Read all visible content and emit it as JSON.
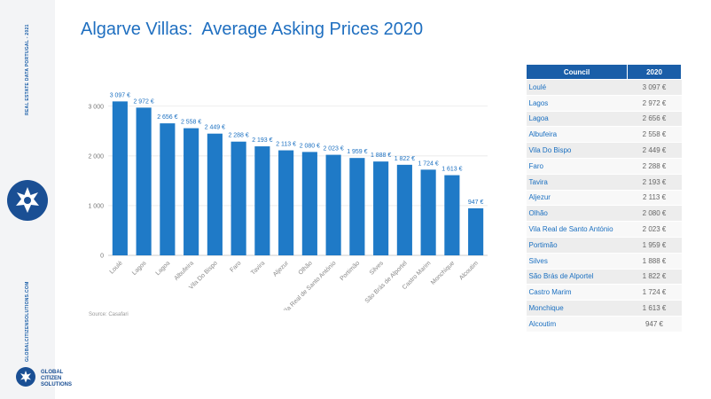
{
  "sidebar": {
    "vertical_text_top": "REAL ESTATE DATA PORTUGAL - 2021",
    "vertical_text_bottom": "GLOBALCITIZENSOLUTIONS.COM",
    "logo_lines": [
      "GLOBAL",
      "CITIZEN",
      "SOLUTIONS"
    ]
  },
  "title": "Algarve Villas:  Average Asking Prices 2020",
  "source": "Source: Casafari",
  "colors": {
    "bar": "#1f7ac7",
    "header": "#1a5ea8",
    "text_blue": "#1a6fc0"
  },
  "chart_data": {
    "type": "bar",
    "categories": [
      "Loulé",
      "Lagos",
      "Lagoa",
      "Albufeira",
      "Vila Do Bispo",
      "Faro",
      "Tavira",
      "Aljezur",
      "Olhão",
      "Vila Real de Santo António",
      "Portimão",
      "Silves",
      "São Brás de Alportel",
      "Castro Marim",
      "Monchique",
      "Alcoutim"
    ],
    "values": [
      3097,
      2972,
      2656,
      2558,
      2449,
      2288,
      2193,
      2113,
      2080,
      2023,
      1959,
      1888,
      1822,
      1724,
      1613,
      947
    ],
    "value_labels": [
      "3 097 €",
      "2 972 €",
      "2 656 €",
      "2 558 €",
      "2 449 €",
      "2 288 €",
      "2 193 €",
      "2 113 €",
      "2 080 €",
      "2 023 €",
      "1 959 €",
      "1 888 €",
      "1 822 €",
      "1 724 €",
      "1 613 €",
      "947 €"
    ],
    "ylim": [
      0,
      3300
    ],
    "yticks": [
      0,
      1000,
      2000,
      3000
    ],
    "ytick_labels": [
      "0",
      "1 000",
      "2 000",
      "3 000"
    ],
    "grid": true
  },
  "table": {
    "headers": [
      "Council",
      "2020"
    ],
    "rows": [
      [
        "Loulé",
        "3 097 €"
      ],
      [
        "Lagos",
        "2 972 €"
      ],
      [
        "Lagoa",
        "2 656 €"
      ],
      [
        "Albufeira",
        "2 558 €"
      ],
      [
        "Vila Do Bispo",
        "2 449 €"
      ],
      [
        "Faro",
        "2 288 €"
      ],
      [
        "Tavira",
        "2 193 €"
      ],
      [
        "Aljezur",
        "2 113 €"
      ],
      [
        "Olhão",
        "2 080 €"
      ],
      [
        "Vila Real de Santo António",
        "2 023 €"
      ],
      [
        "Portimão",
        "1 959 €"
      ],
      [
        "Silves",
        "1 888 €"
      ],
      [
        "São Brás de Alportel",
        "1 822 €"
      ],
      [
        "Castro Marim",
        "1 724 €"
      ],
      [
        "Monchique",
        "1 613 €"
      ],
      [
        "Alcoutim",
        "947 €"
      ]
    ]
  }
}
